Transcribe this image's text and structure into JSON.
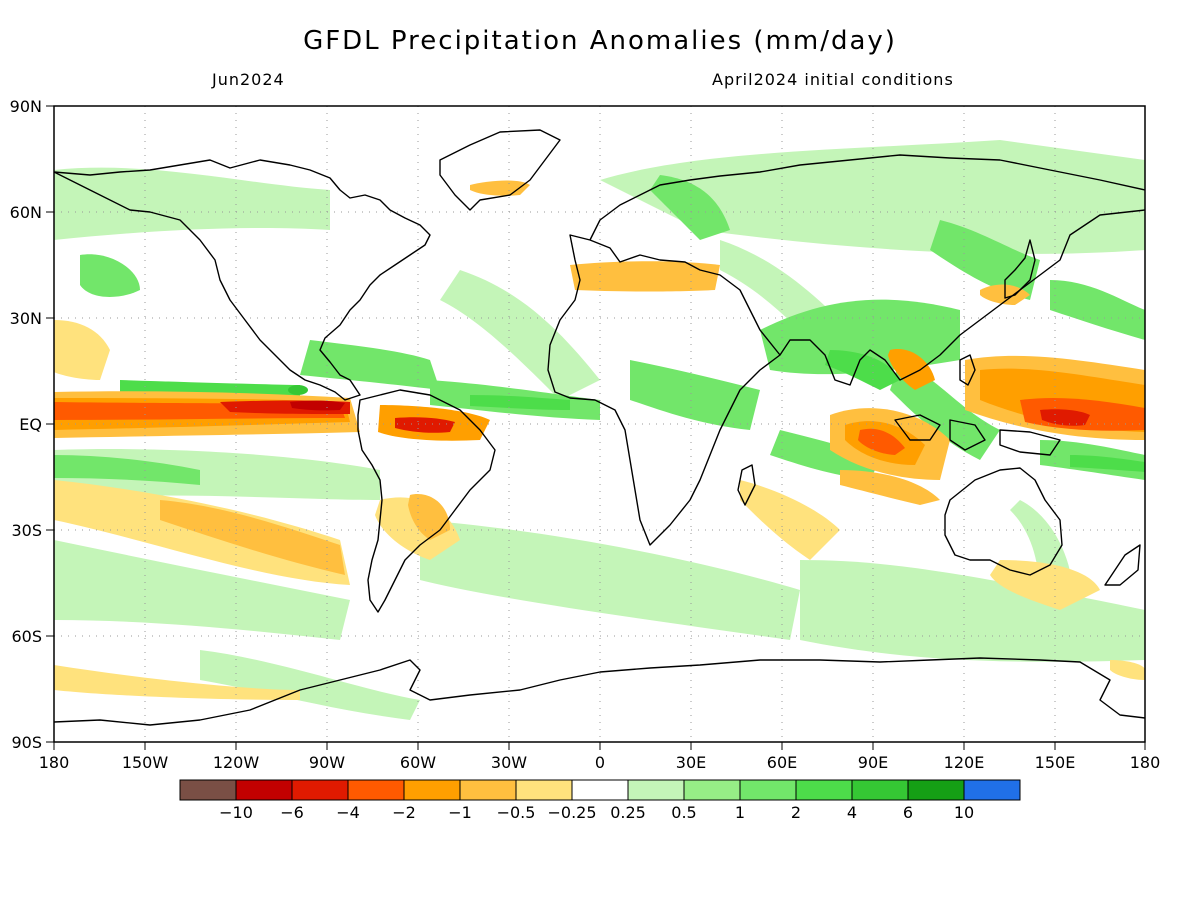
{
  "title": "GFDL Precipitation Anomalies (mm/day)",
  "subtitle_left": "Jun2024",
  "subtitle_right": "April2024 initial conditions",
  "axes": {
    "lon_labels": [
      "180",
      "150W",
      "120W",
      "90W",
      "60W",
      "30W",
      "0",
      "30E",
      "60E",
      "90E",
      "120E",
      "150E",
      "180"
    ],
    "lat_labels": [
      "90N",
      "60N",
      "30N",
      "EQ",
      "30S",
      "60S",
      "90S"
    ]
  },
  "colorbar": {
    "colors": [
      "#7a4f45",
      "#c20000",
      "#e01a00",
      "#ff5a00",
      "#ff9f00",
      "#ffbf3f",
      "#ffe27d",
      "#ffffff",
      "#c4f5b8",
      "#96ee86",
      "#72e66a",
      "#4ddd4a",
      "#35c734",
      "#159f15",
      "#2070e8"
    ],
    "labels": [
      "−10",
      "−6",
      "−4",
      "−2",
      "−1",
      "−0.5",
      "−0.25",
      "0.25",
      "0.5",
      "1",
      "2",
      "4",
      "6",
      "10"
    ]
  }
}
